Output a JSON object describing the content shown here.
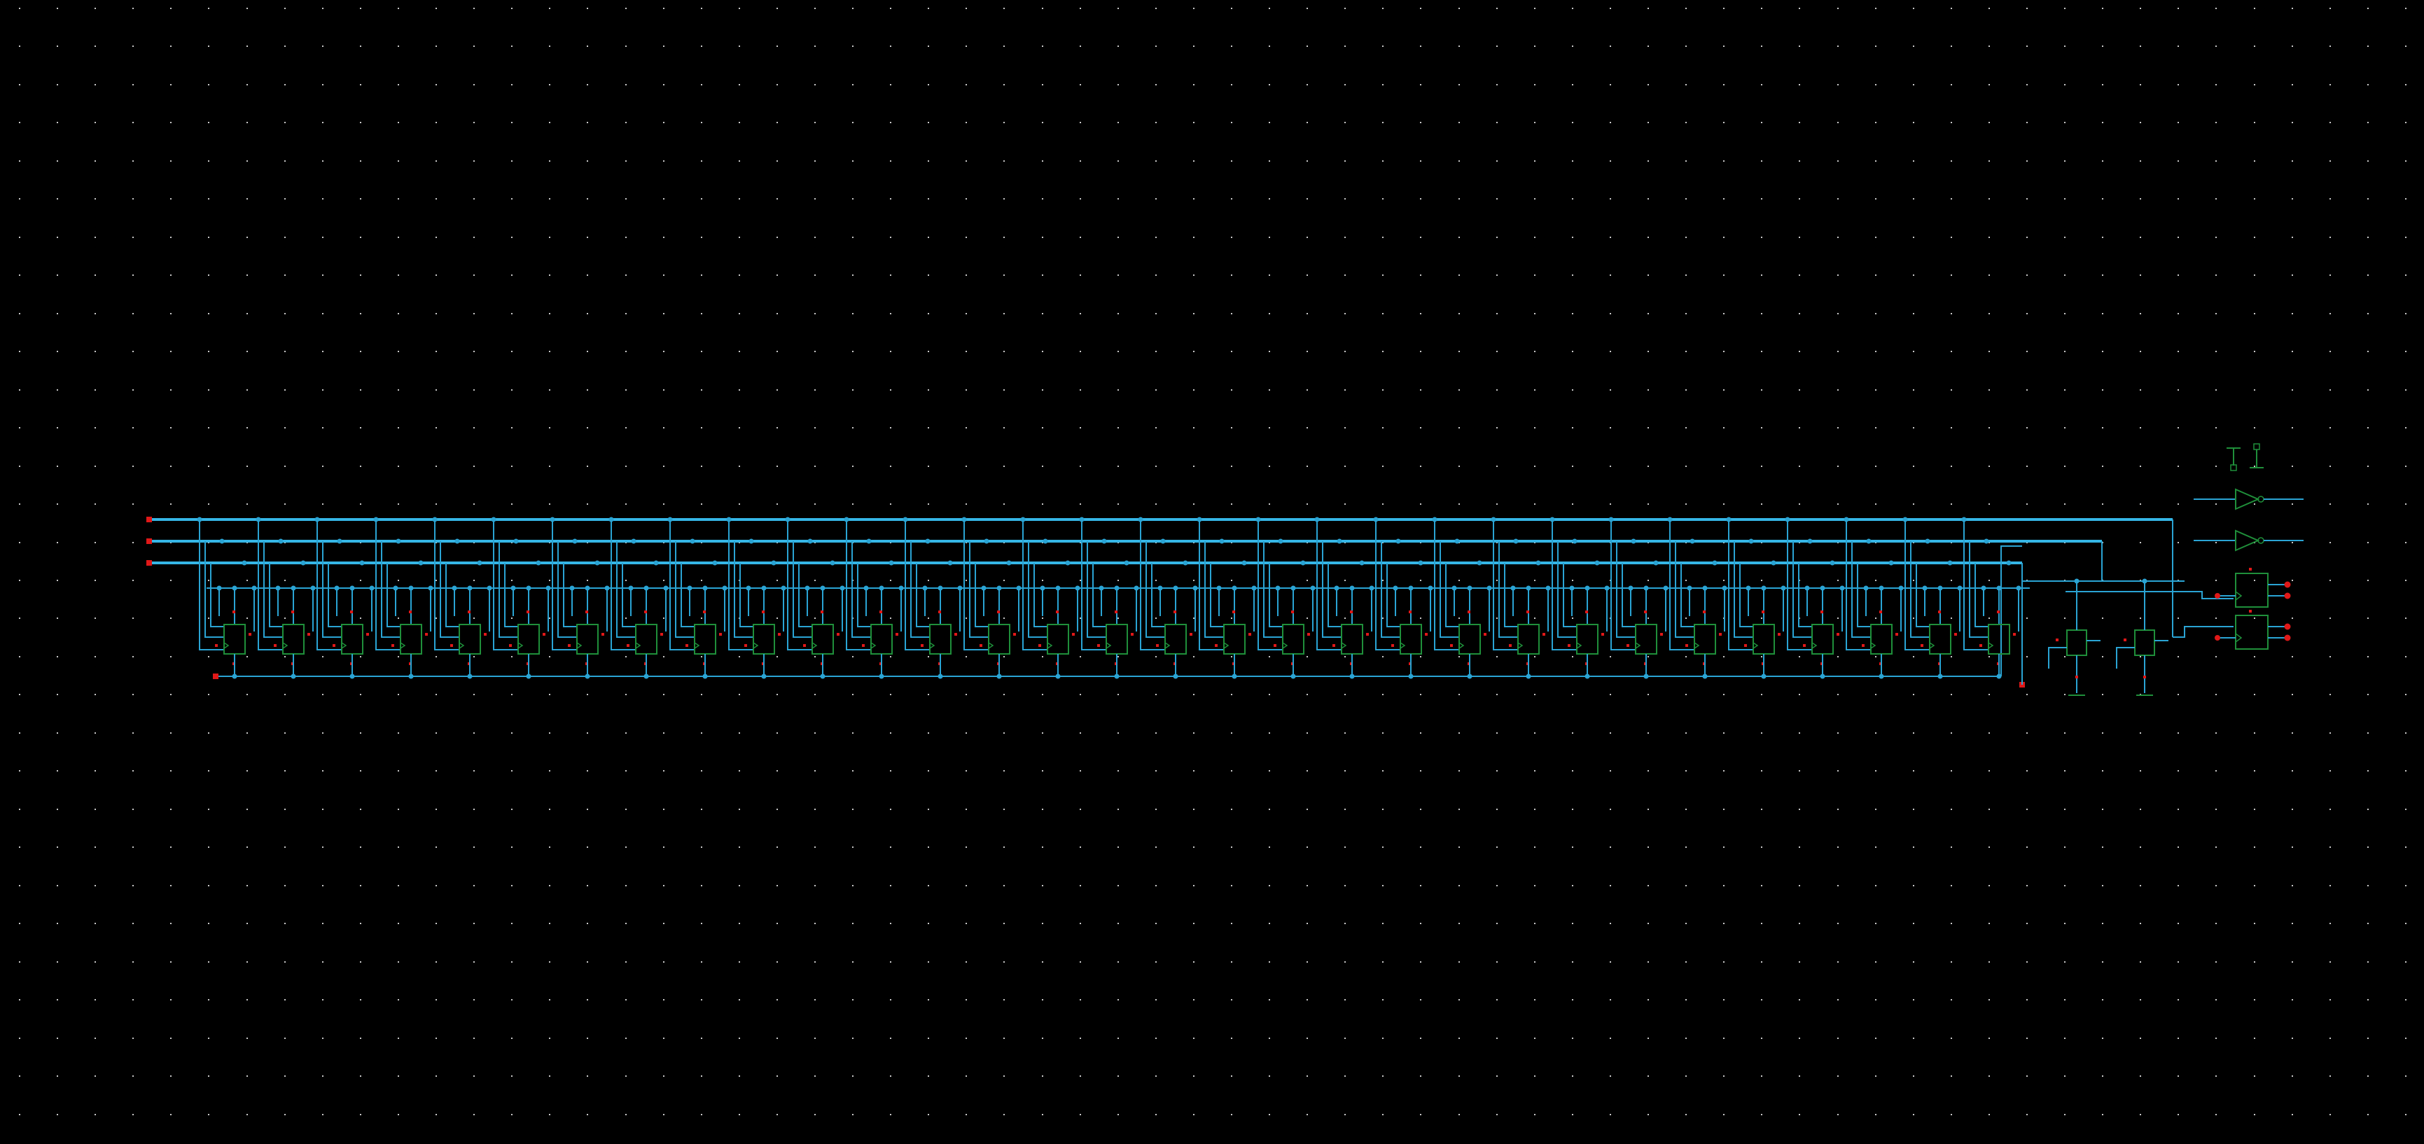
{
  "canvas": {
    "background": "#000000",
    "grid_dot_color": "#c8c8c8",
    "grid_visible": true
  },
  "colors": {
    "wire": "#2aa4d4",
    "bus_wire": "#35b6e6",
    "symbol": "#1f8f3a",
    "pin": "#e01818",
    "junction": "#2aa4d4"
  },
  "schematic": {
    "bus_lines": 3,
    "cell_count": 31,
    "extra_cells": 2,
    "buffer_count": 2,
    "output_block_count": 2,
    "supply_symbols": [
      "vdd-symbol",
      "gnd-symbol"
    ],
    "ground_symbols": 3
  }
}
